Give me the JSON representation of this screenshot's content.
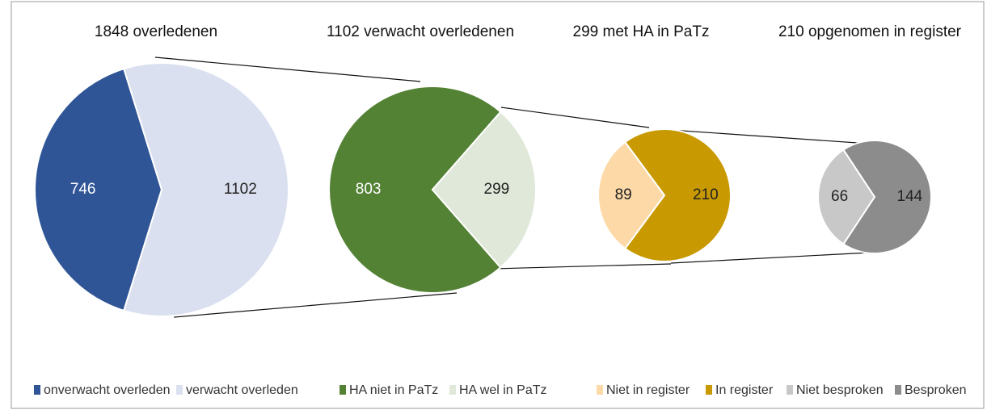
{
  "chart_data": [
    {
      "type": "pie",
      "title": "1848 overledenen",
      "categories": [
        "onverwacht overleden",
        "verwacht overleden"
      ],
      "values": [
        746,
        1102
      ],
      "colors": [
        "#2f5597",
        "#dae0ef"
      ]
    },
    {
      "type": "pie",
      "title": "1102 verwacht overledenen",
      "categories": [
        "HA niet in PaTz",
        "HA wel in PaTz"
      ],
      "values": [
        803,
        299
      ],
      "colors": [
        "#548235",
        "#dfe8d9"
      ]
    },
    {
      "type": "pie",
      "title": "299 met HA in PaTz",
      "categories": [
        "Niet in register",
        "In register"
      ],
      "values": [
        89,
        210
      ],
      "colors": [
        "#fdd9a8",
        "#c89900"
      ]
    },
    {
      "type": "pie",
      "title": "210 opgenomen in register",
      "categories": [
        "Niet besproken",
        "Besproken"
      ],
      "values": [
        66,
        144
      ],
      "colors": [
        "#c8c8c8",
        "#8c8c8c"
      ]
    }
  ]
}
